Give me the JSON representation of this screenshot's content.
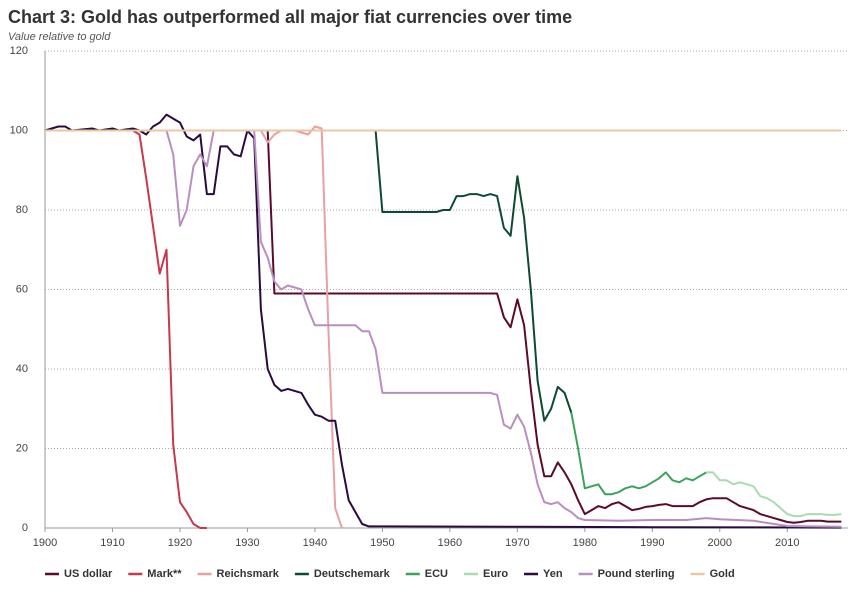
{
  "chart_data": {
    "type": "line",
    "title": "Chart 3: Gold has outperformed all major fiat currencies over time",
    "subtitle": "Value relative to gold",
    "xlim": [
      1900,
      2019
    ],
    "xticks": [
      1900,
      1910,
      1920,
      1930,
      1940,
      1950,
      1960,
      1970,
      1980,
      1990,
      2000,
      2010
    ],
    "ylim": [
      0,
      120
    ],
    "yticks": [
      0,
      20,
      40,
      60,
      80,
      100,
      120
    ],
    "grid": true,
    "series": [
      {
        "name": "US dollar",
        "color": "#5c0a2a",
        "x": [
          1900,
          1933,
          1934,
          1967,
          1968,
          1969,
          1970,
          1971,
          1972,
          1973,
          1974,
          1975,
          1976,
          1977,
          1978,
          1979,
          1980,
          1981,
          1982,
          1983,
          1984,
          1985,
          1986,
          1987,
          1988,
          1989,
          1990,
          1991,
          1992,
          1993,
          1994,
          1995,
          1996,
          1997,
          1998,
          1999,
          2000,
          2001,
          2002,
          2003,
          2004,
          2005,
          2006,
          2007,
          2008,
          2009,
          2010,
          2011,
          2012,
          2013,
          2014,
          2015,
          2016,
          2017,
          2018
        ],
        "values": [
          100,
          100,
          59,
          59,
          53,
          50.5,
          57.5,
          51,
          35,
          21,
          13,
          13,
          16.5,
          14,
          11,
          7,
          3.5,
          4.5,
          5.5,
          5,
          6,
          6.5,
          5.5,
          4.5,
          4.8,
          5.3,
          5.5,
          5.8,
          6,
          5.5,
          5.5,
          5.5,
          5.5,
          6.5,
          7.2,
          7.5,
          7.5,
          7.5,
          6.5,
          5.5,
          5,
          4.5,
          3.5,
          3,
          2.5,
          2,
          1.5,
          1.3,
          1.5,
          1.8,
          1.8,
          1.8,
          1.6,
          1.6,
          1.6
        ]
      },
      {
        "name": "Mark**",
        "color": "#c8384c",
        "x": [
          1900,
          1913,
          1914,
          1915,
          1916,
          1917,
          1918,
          1919,
          1920,
          1921,
          1922,
          1923,
          1924
        ],
        "values": [
          100,
          100,
          99,
          88,
          76,
          64,
          70,
          21,
          6.5,
          4,
          1,
          0,
          0
        ]
      },
      {
        "name": "Reichsmark",
        "color": "#e8a0a0",
        "x": [
          1924,
          1932,
          1933,
          1934,
          1935,
          1936,
          1937,
          1938,
          1939,
          1940,
          1941,
          1942,
          1943,
          1944
        ],
        "values": [
          100,
          100,
          97,
          99,
          100,
          100,
          100,
          99.5,
          99,
          101,
          100.5,
          50,
          5,
          0
        ]
      },
      {
        "name": "Deutschemark",
        "color": "#0d4a30",
        "x": [
          1948,
          1949,
          1950,
          1958,
          1959,
          1960,
          1961,
          1962,
          1963,
          1964,
          1965,
          1966,
          1967,
          1968,
          1969,
          1970,
          1971,
          1972,
          1973,
          1974,
          1975,
          1976,
          1977,
          1978
        ],
        "values": [
          100,
          100,
          79.5,
          79.5,
          80,
          80,
          83.5,
          83.5,
          84,
          84,
          83.5,
          84,
          83.5,
          75.5,
          73.5,
          88.5,
          78,
          60,
          37,
          27,
          30,
          35.5,
          34,
          29
        ]
      },
      {
        "name": "ECU",
        "color": "#3aa35a",
        "x": [
          1978,
          1979,
          1980,
          1981,
          1982,
          1983,
          1984,
          1985,
          1986,
          1987,
          1988,
          1989,
          1990,
          1991,
          1992,
          1993,
          1994,
          1995,
          1996,
          1997,
          1998
        ],
        "values": [
          29,
          20,
          10,
          10.5,
          11,
          8.5,
          8.5,
          9,
          10,
          10.5,
          10,
          10.5,
          11.5,
          12.5,
          14,
          12,
          11.5,
          12.5,
          12,
          13,
          14
        ]
      },
      {
        "name": "Euro",
        "color": "#a8dcb0",
        "x": [
          1998,
          1999,
          2000,
          2001,
          2002,
          2003,
          2004,
          2005,
          2006,
          2007,
          2008,
          2009,
          2010,
          2011,
          2012,
          2013,
          2014,
          2015,
          2016,
          2017,
          2018
        ],
        "values": [
          14,
          14,
          12,
          12,
          11,
          11.5,
          11,
          10.5,
          8,
          7.5,
          6.5,
          5,
          3.5,
          3,
          3,
          3.5,
          3.5,
          3.5,
          3.3,
          3.3,
          3.5
        ]
      },
      {
        "name": "Yen",
        "color": "#2a0a40",
        "x": [
          1900,
          1901,
          1902,
          1903,
          1904,
          1907,
          1908,
          1910,
          1911,
          1913,
          1914,
          1915,
          1916,
          1917,
          1918,
          1919,
          1920,
          1921,
          1922,
          1923,
          1924,
          1925,
          1926,
          1927,
          1928,
          1929,
          1930,
          1931,
          1932,
          1933,
          1934,
          1935,
          1936,
          1937,
          1938,
          1939,
          1940,
          1941,
          1942,
          1943,
          1944,
          1945,
          1946,
          1947,
          1948,
          1971,
          1990,
          2018
        ],
        "values": [
          100,
          100.5,
          101,
          101,
          100,
          100.5,
          100,
          100.5,
          100,
          100.5,
          100,
          99,
          101,
          102,
          104,
          103,
          102,
          98.5,
          97.5,
          99,
          84,
          84,
          96,
          96,
          94,
          93.5,
          100,
          98,
          55,
          40,
          36,
          34.5,
          35,
          34.5,
          34,
          31,
          28.5,
          28,
          27,
          27,
          16,
          7,
          4,
          1,
          0.4,
          0.3,
          0.2,
          0.1
        ]
      },
      {
        "name": "Pound sterling",
        "color": "#b88fc0",
        "x": [
          1900,
          1918,
          1919,
          1920,
          1921,
          1922,
          1923,
          1924,
          1925,
          1931,
          1932,
          1933,
          1934,
          1935,
          1936,
          1937,
          1938,
          1939,
          1940,
          1946,
          1947,
          1948,
          1949,
          1950,
          1966,
          1967,
          1968,
          1969,
          1970,
          1971,
          1972,
          1973,
          1974,
          1975,
          1976,
          1977,
          1978,
          1979,
          1980,
          1985,
          1990,
          1995,
          1998,
          2000,
          2005,
          2010,
          2018
        ],
        "values": [
          100,
          100,
          94,
          76,
          80,
          91,
          94,
          91,
          100,
          100,
          72,
          68,
          62,
          60,
          61,
          60.5,
          60,
          55,
          51,
          51,
          49.5,
          49.5,
          45,
          34,
          34,
          33.5,
          26,
          25,
          28.5,
          25.5,
          19,
          11,
          6.5,
          6,
          6.5,
          5,
          4,
          2.5,
          2,
          1.8,
          2,
          2,
          2.5,
          2.2,
          1.8,
          0.5,
          0.3
        ]
      },
      {
        "name": "Gold",
        "color": "#e8c8a0",
        "x": [
          1900,
          2018
        ],
        "values": [
          100,
          100
        ]
      }
    ]
  }
}
